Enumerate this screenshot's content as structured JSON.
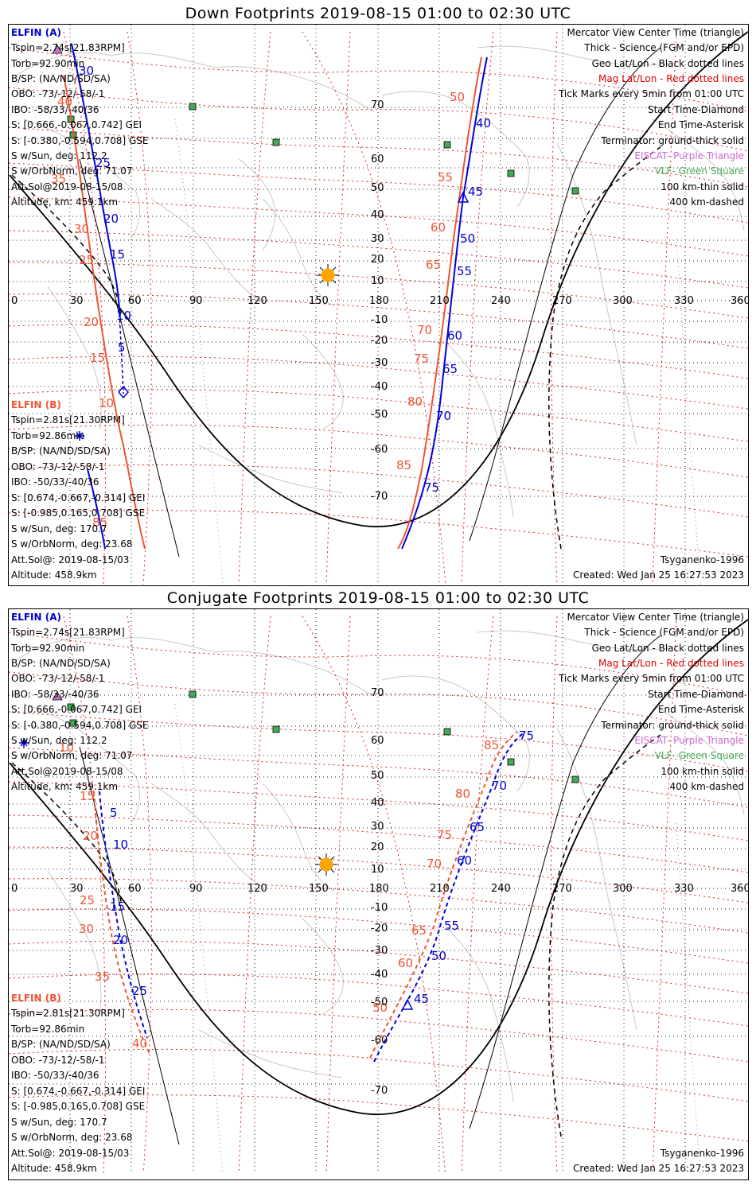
{
  "colors": {
    "elfin_a": "#0000cc",
    "elfin_b": "#ee5533",
    "mag_grid": "#e00000",
    "geo_grid": "#000000",
    "purple": "#cc55cc",
    "vlf_green": "#44aa55",
    "sun": "#ffa500",
    "coast": "#bbbbbb"
  },
  "icons": [
    "sun-icon",
    "triangle-marker-icon",
    "diamond-marker-icon",
    "asterisk-marker-icon",
    "vlf-square-icon"
  ],
  "panels": [
    {
      "title": "Down Footprints 2019-08-15 01:00 to 02:30 UTC",
      "elfin_a": {
        "header": "ELFIN (A)",
        "lines": [
          "Tspin=2.74s[21.83RPM]",
          "Torb=92.90min",
          "B/SP: (NA/ND/SD/SA)",
          "OBO: -73/-12/-58/-1",
          "IBO: -58/33/-40/36",
          "S: [0.666,-0.067,0.742] GEI",
          "S: [-0.380,-0.594,0.708] GSE",
          "S w/Sun, deg: 112.2",
          "S w/OrbNorm, deg: 71.07",
          "Att.Sol@2019-08-15/08",
          "Altitude, km: 459.1km"
        ]
      },
      "elfin_b": {
        "header": "ELFIN (B)",
        "lines": [
          "Tspin=2.81s[21.30RPM]",
          "Torb=92.86min",
          "B/SP: (NA/ND/SD/SA)",
          "OBO: -73/-12/-58/-1",
          "IBO: -50/33/-40/36",
          "S: [0.674,-0.667,-0.314] GEI",
          "S: [-0.985,0.165,0.708] GSE",
          "S w/Sun, deg: 170.7",
          "S w/OrbNorm, deg: 23.68",
          "Att.Sol@: 2019-08-15/03",
          "Altitude: 458.9km"
        ]
      },
      "legend": [
        {
          "text": "Mercator View Center Time (triangle)",
          "color": "#000000"
        },
        {
          "text": "Thick - Science (FGM and/or EPD)",
          "color": "#000000"
        },
        {
          "text": "Geo Lat/Lon - Black dotted lines",
          "color": "#000000"
        },
        {
          "text": "Mag Lat/Lon - Red dotted lines",
          "color": "#dd0000"
        },
        {
          "text": "Tick Marks every 5min from 01:00 UTC",
          "color": "#000000"
        },
        {
          "text": "Start Time-Diamond",
          "color": "#000000"
        },
        {
          "text": "End Time-Asterisk",
          "color": "#000000"
        },
        {
          "text": "Terminator: ground-thick solid",
          "color": "#000000"
        },
        {
          "text": "EISCAT- Purple Triangle",
          "color": "#cc66cc"
        },
        {
          "text": "VLF- Green Square",
          "color": "#44aa55"
        },
        {
          "text": "100 km-thin solid",
          "color": "#000000"
        },
        {
          "text": "400 km-dashed",
          "color": "#000000"
        }
      ],
      "model": "Tsyganenko-1996",
      "created": "Created: Wed Jan 25 16:27:53 2023",
      "lon_labels": [
        "0",
        "30",
        "60",
        "90",
        "120",
        "150",
        "180",
        "210",
        "240",
        "270",
        "300",
        "330",
        "360"
      ],
      "lat_labels": [
        "70",
        "60",
        "50",
        "40",
        "30",
        "20",
        "10",
        "-10",
        "-20",
        "-30",
        "-40",
        "-50",
        "-60",
        "-70"
      ],
      "a_track_labels": [
        "30",
        "25",
        "20",
        "15",
        "10",
        "5",
        "40",
        "45",
        "50",
        "55",
        "60",
        "65",
        "70",
        "75"
      ],
      "b_track_labels": [
        "40",
        "35",
        "30",
        "25",
        "20",
        "15",
        "10",
        "50",
        "55",
        "60",
        "65",
        "70",
        "75",
        "80",
        "85",
        "85"
      ]
    },
    {
      "title": "Conjugate Footprints 2019-08-15 01:00 to 02:30 UTC",
      "elfin_a": {
        "header": "ELFIN (A)",
        "lines": [
          "Tspin=2.74s[21.83RPM]",
          "Torb=92.90min",
          "B/SP: (NA/ND/SD/SA)",
          "OBO: -73/-12/-58/-1",
          "IBO: -58/33/-40/36",
          "S: [0.666,-0.067,0.742] GEI",
          "S: [-0.380,-0.594,0.708] GSE",
          "S w/Sun, deg: 112.2",
          "S w/OrbNorm, deg: 71.07",
          "Att.Sol@2019-08-15/08",
          "Altitude, km: 459.1km"
        ]
      },
      "elfin_b": {
        "header": "ELFIN (B)",
        "lines": [
          "Tspin=2.81s[21.30RPM]",
          "Torb=92.86min",
          "B/SP: (NA/ND/SD/SA)",
          "OBO: -73/-12/-58/-1",
          "IBO: -50/33/-40/36",
          "S: [0.674,-0.667,-0.314] GEI",
          "S: [-0.985,0.165,0.708] GSE",
          "S w/Sun, deg: 170.7",
          "S w/OrbNorm, deg: 23.68",
          "Att.Sol@: 2019-08-15/03",
          "Altitude: 458.9km"
        ]
      },
      "legend": [
        {
          "text": "Mercator View Center Time (triangle)",
          "color": "#000000"
        },
        {
          "text": "Thick - Science (FGM and/or EPD)",
          "color": "#000000"
        },
        {
          "text": "Geo Lat/Lon - Black dotted lines",
          "color": "#000000"
        },
        {
          "text": "Mag Lat/Lon - Red dotted lines",
          "color": "#dd0000"
        },
        {
          "text": "Tick Marks every 5min from 01:00 UTC",
          "color": "#000000"
        },
        {
          "text": "Start Time-Diamond",
          "color": "#000000"
        },
        {
          "text": "End Time-Asterisk",
          "color": "#000000"
        },
        {
          "text": "Terminator: ground-thick solid",
          "color": "#000000"
        },
        {
          "text": "EISCAT- Purple Triangle",
          "color": "#cc66cc"
        },
        {
          "text": "VLF- Green Square",
          "color": "#44aa55"
        },
        {
          "text": "100 km-thin solid",
          "color": "#000000"
        },
        {
          "text": "400 km-dashed",
          "color": "#000000"
        }
      ],
      "model": "Tsyganenko-1996",
      "created": "Created: Wed Jan 25 16:27:53 2023",
      "lon_labels": [
        "0",
        "30",
        "60",
        "90",
        "120",
        "150",
        "180",
        "210",
        "240",
        "270",
        "300",
        "330",
        "360"
      ],
      "lat_labels": [
        "70",
        "60",
        "50",
        "40",
        "30",
        "20",
        "10",
        "-10",
        "-20",
        "-30",
        "-40",
        "-50",
        "-60",
        "-70"
      ],
      "a_track_labels": [
        "5",
        "10",
        "15",
        "20",
        "25",
        "45",
        "50",
        "55",
        "60",
        "65",
        "70",
        "75"
      ],
      "b_track_labels": [
        "10",
        "15",
        "20",
        "25",
        "30",
        "35",
        "40",
        "50",
        "60",
        "65",
        "70",
        "75",
        "80",
        "85"
      ]
    }
  ]
}
